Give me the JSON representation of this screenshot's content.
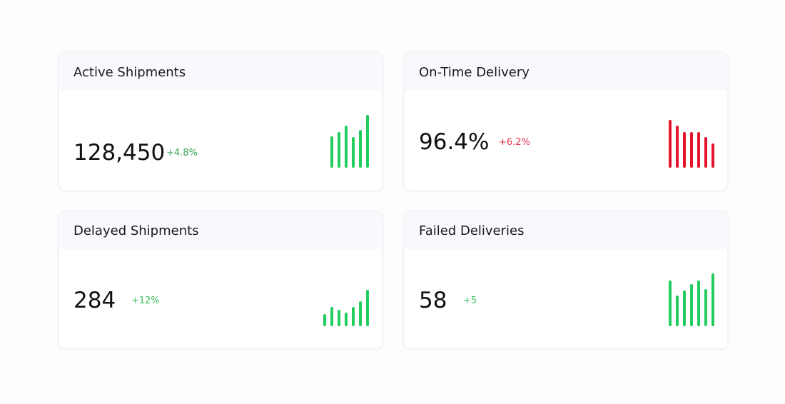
{
  "cards": [
    {
      "title": "Active Shipments",
      "value": "128,450",
      "delta": "+4.8%",
      "delta_color": "#3aa655",
      "sparkline": {
        "type": "bar",
        "color": "#22cc5e",
        "values": [
          44,
          50,
          59,
          43,
          53,
          74
        ]
      }
    },
    {
      "title": "On-Time Delivery",
      "value": "96.4%",
      "delta": "+6.2%",
      "delta_color": "#e0334b",
      "sparkline": {
        "type": "bar",
        "color": "#e3142b",
        "values": [
          67,
          59,
          50,
          50,
          50,
          43,
          34
        ]
      }
    },
    {
      "title": "Delayed Shipments",
      "value": "284",
      "delta": "+12%",
      "delta_color": "#3fbf5f",
      "sparkline": {
        "type": "bar",
        "color": "#22cc5e",
        "values": [
          17,
          27,
          23,
          19,
          27,
          35,
          51
        ]
      }
    },
    {
      "title": "Failed Deliveries",
      "value": "58",
      "delta": "+5",
      "delta_color": "#3fbf5f",
      "sparkline": {
        "type": "bar",
        "color": "#22cc5e",
        "values": [
          64,
          43,
          50,
          59,
          64,
          52,
          74
        ]
      }
    }
  ]
}
